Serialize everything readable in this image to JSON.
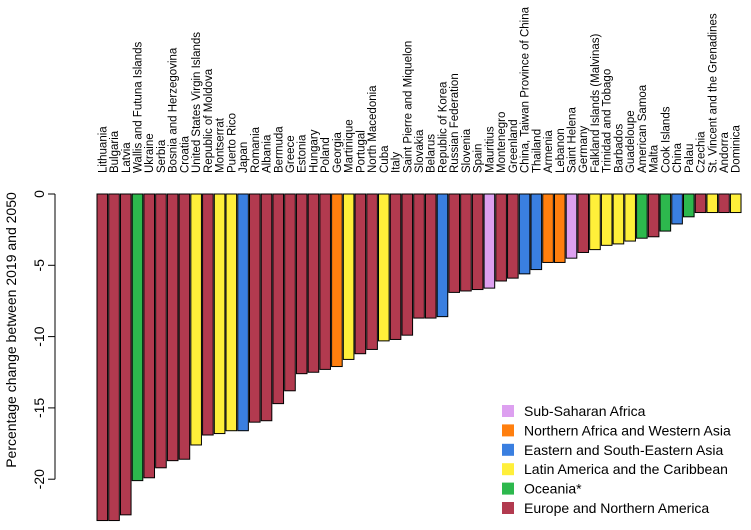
{
  "chart_data": {
    "type": "bar",
    "ylabel": "Percentage change between 2019 and 2050",
    "ylim": [
      -23.2,
      0.6
    ],
    "yticks": [
      0,
      -5,
      -10,
      -15,
      -20
    ],
    "grid": false,
    "legend_position": "bottom-right",
    "colors": {
      "Sub-Saharan Africa": "#dda0f0",
      "Northern Africa and Western Asia": "#ff7f0e",
      "Eastern and South-Eastern Asia": "#3a7fe0",
      "Latin America and the Caribbean": "#ffef3a",
      "Oceania*": "#2db84d",
      "Europe and Northern America": "#b23a4f"
    },
    "legend": [
      "Sub-Saharan Africa",
      "Northern Africa and Western Asia",
      "Eastern and South-Eastern Asia",
      "Latin America and the Caribbean",
      "Oceania*",
      "Europe and Northern America"
    ],
    "categories": [
      "Lithuania",
      "Bulgaria",
      "Latvia",
      "Wallis and Futuna Islands",
      "Ukraine",
      "Serbia",
      "Bosnia and Herzegovina",
      "Croatia",
      "United States Virgin Islands",
      "Republic of Moldova",
      "Montserrat",
      "Puerto Rico",
      "Japan",
      "Romania",
      "Albania",
      "Bermuda",
      "Greece",
      "Estonia",
      "Hungary",
      "Poland",
      "Georgia",
      "Martinique",
      "Portugal",
      "North Macedonia",
      "Cuba",
      "Italy",
      "Saint Pierre and Miquelon",
      "Slovakia",
      "Belarus",
      "Republic of Korea",
      "Russian Federation",
      "Slovenia",
      "Spain",
      "Mauritius",
      "Montenegro",
      "Greenland",
      "China, Taiwan Province of China",
      "Thailand",
      "Armenia",
      "Lebanon",
      "Saint Helena",
      "Germany",
      "Falkland Islands (Malvinas)",
      "Trinidad and Tobago",
      "Barbados",
      "Guadeloupe",
      "American Samoa",
      "Malta",
      "Cook Islands",
      "China",
      "Palau",
      "Czechia",
      "St. Vincent and the Grenadines",
      "Andorra",
      "Dominica"
    ],
    "values": [
      -22.9,
      -22.9,
      -22.5,
      -20.1,
      -19.9,
      -19.2,
      -18.7,
      -18.6,
      -17.6,
      -16.9,
      -16.8,
      -16.6,
      -16.6,
      -16.0,
      -15.9,
      -14.7,
      -13.8,
      -12.6,
      -12.5,
      -12.3,
      -12.1,
      -11.6,
      -11.2,
      -10.9,
      -10.3,
      -10.2,
      -9.9,
      -8.7,
      -8.7,
      -8.6,
      -6.9,
      -6.8,
      -6.7,
      -6.6,
      -6.1,
      -5.9,
      -5.6,
      -5.3,
      -4.8,
      -4.8,
      -4.5,
      -4.1,
      -3.9,
      -3.6,
      -3.5,
      -3.3,
      -3.1,
      -3.0,
      -2.6,
      -2.1,
      -1.6,
      -1.3,
      -1.3,
      -1.3,
      -1.3
    ],
    "regions": [
      "Europe and Northern America",
      "Europe and Northern America",
      "Europe and Northern America",
      "Oceania*",
      "Europe and Northern America",
      "Europe and Northern America",
      "Europe and Northern America",
      "Europe and Northern America",
      "Latin America and the Caribbean",
      "Europe and Northern America",
      "Latin America and the Caribbean",
      "Latin America and the Caribbean",
      "Eastern and South-Eastern Asia",
      "Europe and Northern America",
      "Europe and Northern America",
      "Europe and Northern America",
      "Europe and Northern America",
      "Europe and Northern America",
      "Europe and Northern America",
      "Europe and Northern America",
      "Northern Africa and Western Asia",
      "Latin America and the Caribbean",
      "Europe and Northern America",
      "Europe and Northern America",
      "Latin America and the Caribbean",
      "Europe and Northern America",
      "Europe and Northern America",
      "Europe and Northern America",
      "Europe and Northern America",
      "Eastern and South-Eastern Asia",
      "Europe and Northern America",
      "Europe and Northern America",
      "Europe and Northern America",
      "Sub-Saharan Africa",
      "Europe and Northern America",
      "Europe and Northern America",
      "Eastern and South-Eastern Asia",
      "Eastern and South-Eastern Asia",
      "Northern Africa and Western Asia",
      "Northern Africa and Western Asia",
      "Sub-Saharan Africa",
      "Europe and Northern America",
      "Latin America and the Caribbean",
      "Latin America and the Caribbean",
      "Latin America and the Caribbean",
      "Latin America and the Caribbean",
      "Oceania*",
      "Europe and Northern America",
      "Oceania*",
      "Eastern and South-Eastern Asia",
      "Oceania*",
      "Europe and Northern America",
      "Latin America and the Caribbean",
      "Europe and Northern America",
      "Latin America and the Caribbean"
    ]
  }
}
